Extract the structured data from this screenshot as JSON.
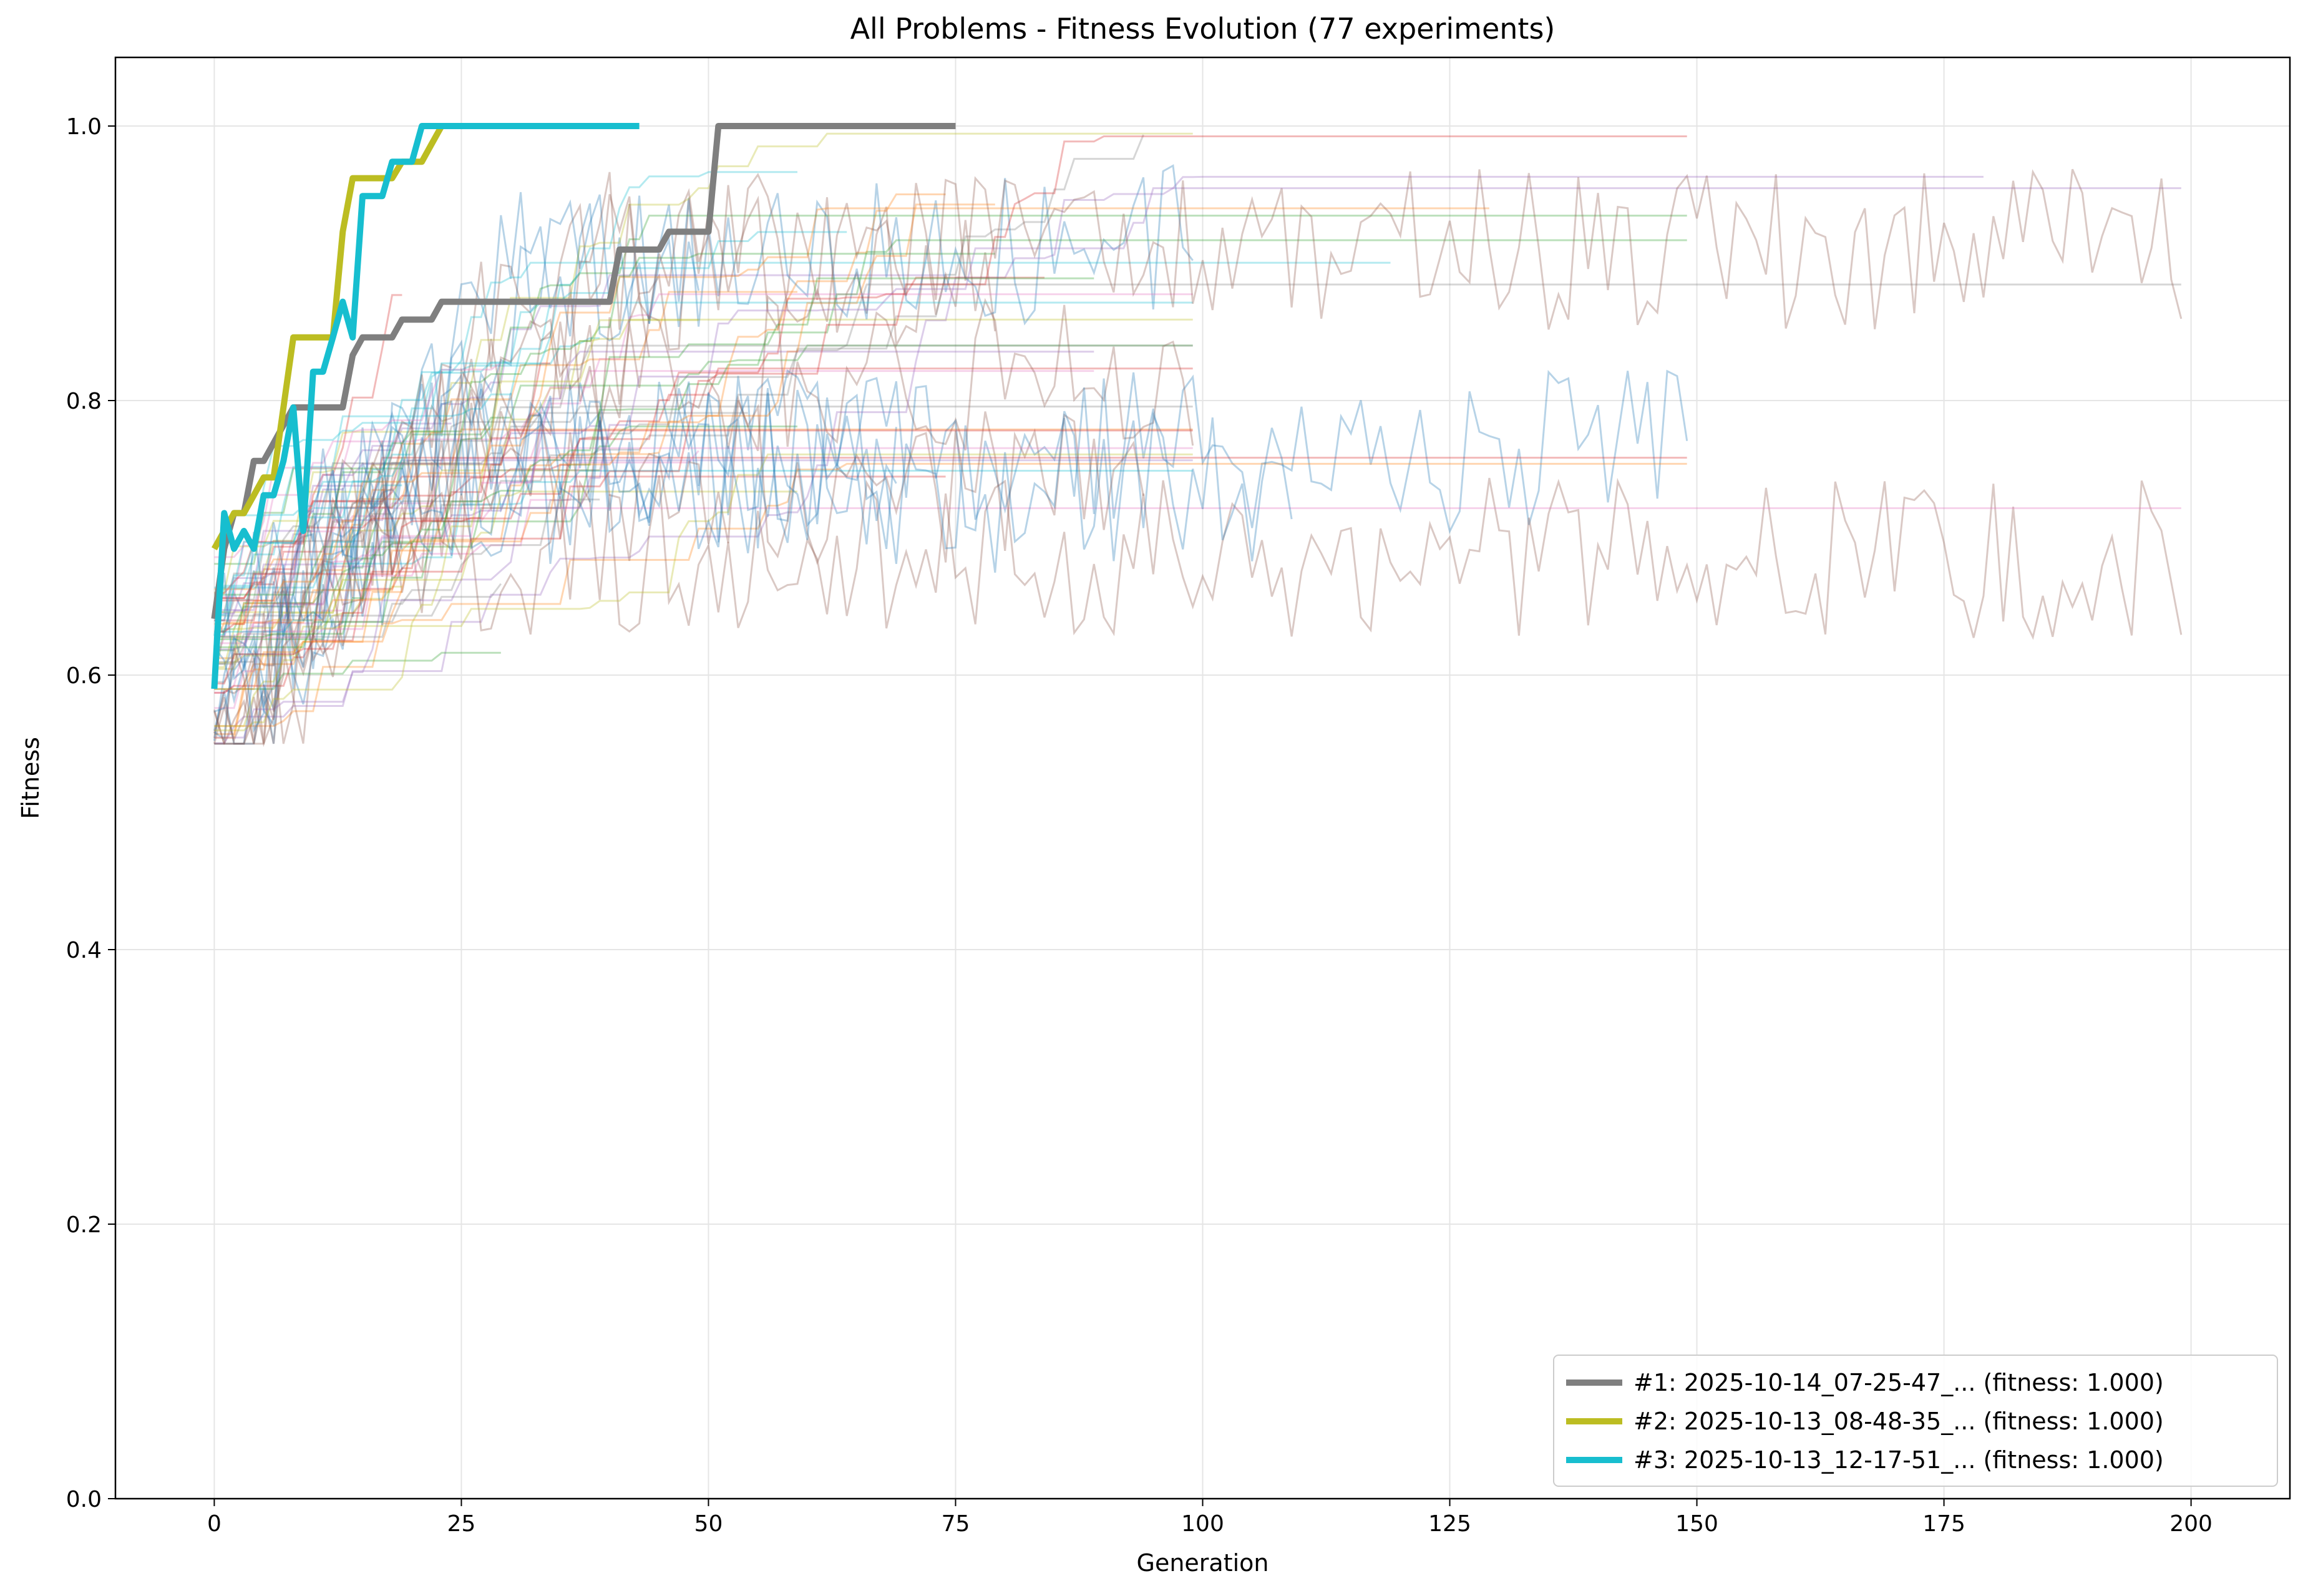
{
  "chart_data": {
    "type": "line",
    "title": "All Problems - Fitness Evolution (77 experiments)",
    "xlabel": "Generation",
    "ylabel": "Fitness",
    "xlim": [
      -10,
      210
    ],
    "ylim": [
      0,
      1.05
    ],
    "xticks": [
      0,
      25,
      50,
      75,
      100,
      125,
      150,
      175,
      200
    ],
    "yticks": [
      0.0,
      0.2,
      0.4,
      0.6,
      0.8,
      1.0
    ],
    "xtick_labels": [
      "0",
      "25",
      "50",
      "75",
      "100",
      "125",
      "150",
      "175",
      "200"
    ],
    "ytick_labels": [
      "0.0",
      "0.2",
      "0.4",
      "0.6",
      "0.8",
      "1.0"
    ],
    "grid": true,
    "legend_position": "lower-right",
    "highlighted_series": [
      {
        "name": "#1: 2025-10-14_07-25-47_... (fitness: 1.000)",
        "color": "#7f7f7f",
        "x": [
          0,
          1,
          2,
          3,
          4,
          5,
          6,
          7,
          8,
          13,
          14,
          15,
          16,
          17,
          18,
          19,
          20,
          22,
          23,
          24,
          40,
          41,
          45,
          46,
          47,
          50,
          51,
          75
        ],
        "y": [
          0.641,
          0.692,
          0.718,
          0.718,
          0.756,
          0.756,
          0.769,
          0.782,
          0.795,
          0.795,
          0.833,
          0.846,
          0.846,
          0.846,
          0.846,
          0.859,
          0.859,
          0.859,
          0.872,
          0.872,
          0.872,
          0.91,
          0.91,
          0.923,
          0.923,
          0.923,
          1.0,
          1.0
        ]
      },
      {
        "name": "#2: 2025-10-13_08-48-35_... (fitness: 1.000)",
        "color": "#bcbd22",
        "x": [
          0,
          1,
          2,
          3,
          4,
          5,
          6,
          7,
          8,
          9,
          12,
          13,
          14,
          18,
          19,
          21,
          22,
          23
        ],
        "y": [
          0.692,
          0.705,
          0.718,
          0.718,
          0.731,
          0.744,
          0.744,
          0.795,
          0.846,
          0.846,
          0.846,
          0.923,
          0.962,
          0.962,
          0.974,
          0.974,
          0.987,
          1.0
        ]
      },
      {
        "name": "#3: 2025-10-13_12-17-51_... (fitness: 1.000)",
        "color": "#17becf",
        "x": [
          0,
          1,
          2,
          3,
          4,
          5,
          6,
          7,
          8,
          9,
          10,
          11,
          12,
          13,
          14,
          15,
          16,
          17,
          18,
          19,
          20,
          21,
          22,
          43
        ],
        "y": [
          0.59,
          0.718,
          0.692,
          0.705,
          0.692,
          0.731,
          0.731,
          0.756,
          0.795,
          0.705,
          0.821,
          0.821,
          0.846,
          0.872,
          0.846,
          0.949,
          0.949,
          0.949,
          0.974,
          0.974,
          0.974,
          1.0,
          1.0,
          1.0
        ]
      }
    ],
    "background_series_colors": [
      "#1f77b4",
      "#ff7f0e",
      "#2ca02c",
      "#d62728",
      "#9467bd",
      "#8c564b",
      "#e377c2",
      "#7f7f7f",
      "#bcbd22",
      "#17becf"
    ],
    "background_series_count": 74
  }
}
